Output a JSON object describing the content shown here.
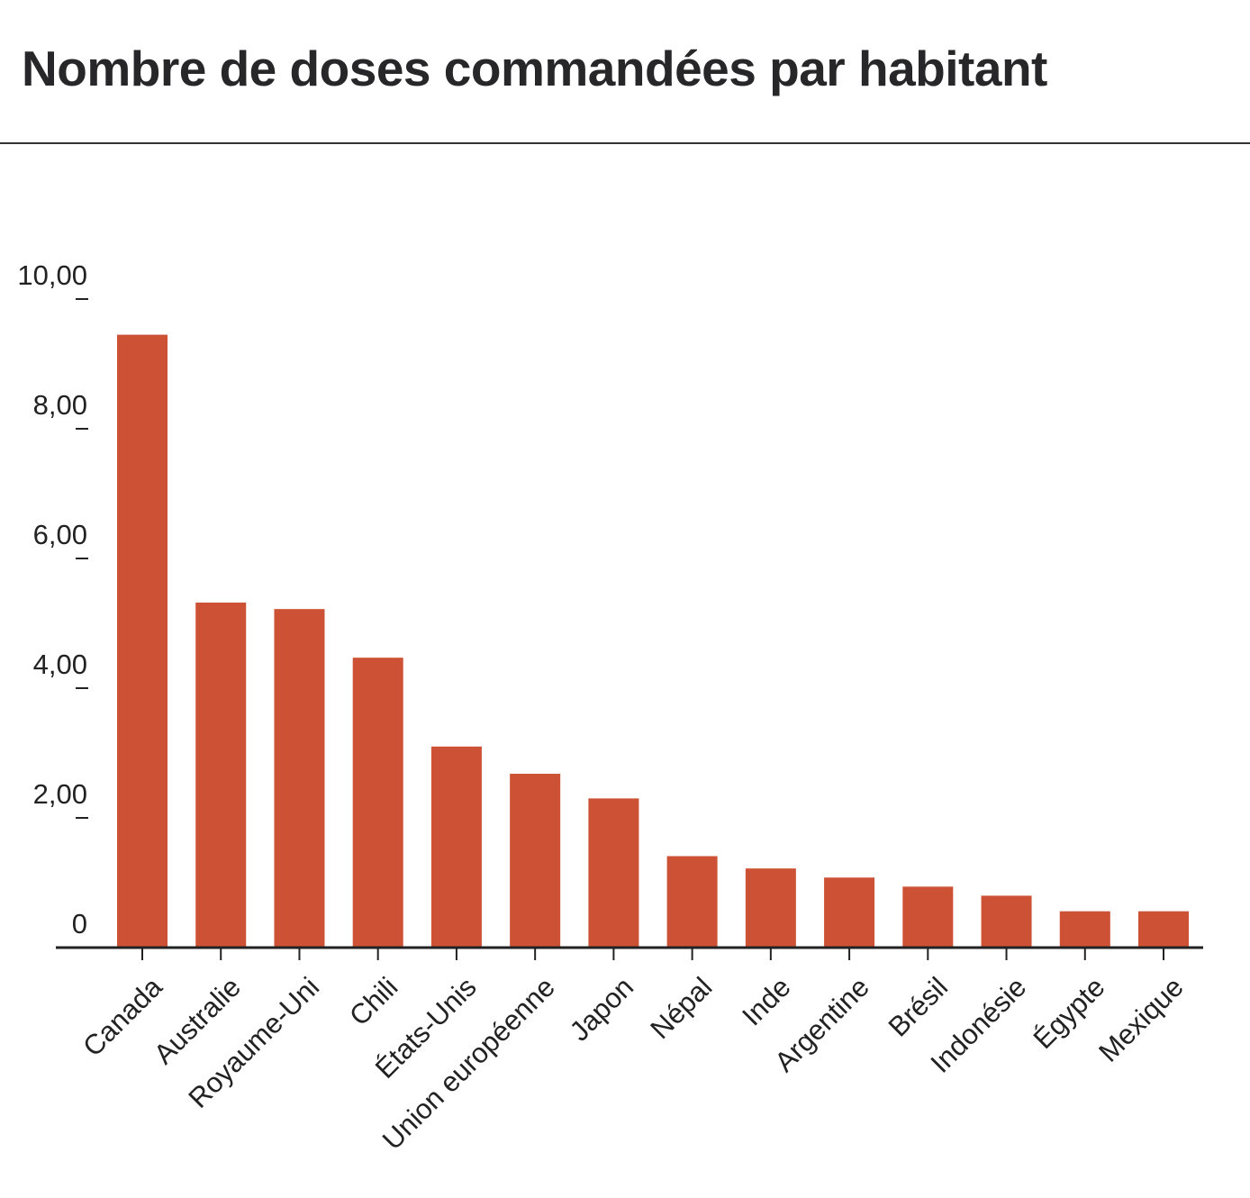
{
  "title": "Nombre de doses commandées par habitant",
  "colors": {
    "bar": "#cd5134",
    "axis": "#222222",
    "text": "#27272a"
  },
  "chart_data": {
    "type": "bar",
    "title": "Nombre de doses commandées par habitant",
    "xlabel": "",
    "ylabel": "",
    "ylim": [
      0,
      10
    ],
    "grid": false,
    "y_ticks": [
      {
        "value": 0,
        "label": "0"
      },
      {
        "value": 2,
        "label": "2,00"
      },
      {
        "value": 4,
        "label": "4,00"
      },
      {
        "value": 6,
        "label": "6,00"
      },
      {
        "value": 8,
        "label": "8,00"
      },
      {
        "value": 10,
        "label": "10,00"
      }
    ],
    "categories": [
      "Canada",
      "Australie",
      "Royaume-Uni",
      "Chili",
      "États-Unis",
      "Union européenne",
      "Japon",
      "Népal",
      "Inde",
      "Argentine",
      "Brésil",
      "Indonésie",
      "Égypte",
      "Mexique"
    ],
    "values": [
      9.45,
      5.32,
      5.22,
      4.47,
      3.1,
      2.68,
      2.3,
      1.41,
      1.22,
      1.08,
      0.94,
      0.8,
      0.56,
      0.56
    ]
  }
}
